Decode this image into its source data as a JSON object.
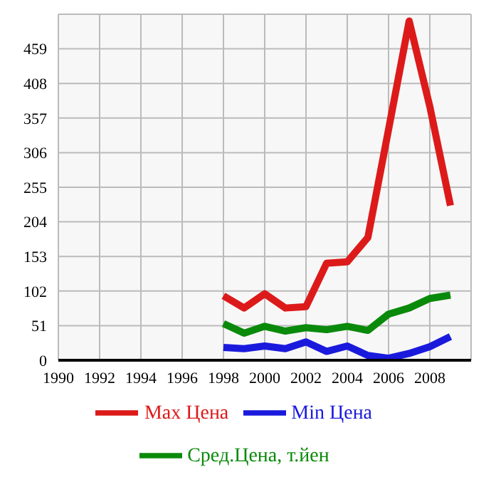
{
  "chart_data": {
    "type": "line",
    "x": [
      1998,
      1999,
      2000,
      2001,
      2002,
      2003,
      2004,
      2005,
      2006,
      2007,
      2008,
      2009
    ],
    "series": [
      {
        "name": "Max Цена",
        "color": "#dd1a1a",
        "values": [
          95,
          77,
          98,
          77,
          79,
          143,
          145,
          181,
          340,
          500,
          374,
          228
        ]
      },
      {
        "name": "Min Цена",
        "color": "#1a1add",
        "values": [
          19,
          17,
          21,
          17,
          27,
          13,
          21,
          7,
          3,
          10,
          20,
          35
        ]
      },
      {
        "name": "Сред.Цена, т.йен",
        "color": "#0a8a0a",
        "values": [
          54,
          40,
          50,
          43,
          48,
          45,
          50,
          44,
          68,
          77,
          91,
          96
        ]
      }
    ],
    "xlim": [
      1990,
      2010
    ],
    "xticks": [
      1990,
      1992,
      1994,
      1996,
      1998,
      2000,
      2002,
      2004,
      2006,
      2008
    ],
    "ylim": [
      0,
      510
    ],
    "yticks": [
      0,
      51,
      102,
      153,
      204,
      255,
      306,
      357,
      408,
      459
    ],
    "grid": true,
    "legend": "bottom",
    "marker": "none",
    "line_style": "solid"
  }
}
